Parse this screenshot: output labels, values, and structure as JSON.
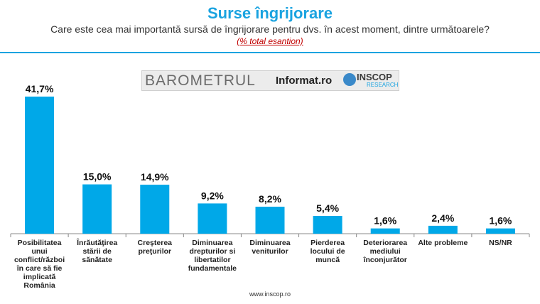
{
  "header": {
    "title": "Surse îngrijorare",
    "subtitle": "Care este cea mai importantă sursă de îngrijorare pentru dvs. în acest moment, dintre următoarele?",
    "note": "(% total esantion)"
  },
  "logo": {
    "barometrul": "BAROMETRUL",
    "informat": "Informat.ro",
    "inscop": "INSCOP",
    "research": "RESEARCH"
  },
  "chart_data": {
    "type": "bar",
    "categories": [
      [
        "Posibilitatea",
        "unui",
        "conflict/război",
        "în care să fie",
        "implicată",
        "România"
      ],
      [
        "Înrăutăţirea",
        "stării de",
        "sănătate"
      ],
      [
        "Creşterea",
        "preţurilor"
      ],
      [
        "Diminuarea",
        "drepturilor si",
        "libertatilor",
        "fundamentale"
      ],
      [
        "Diminuarea",
        "veniturilor"
      ],
      [
        "Pierderea",
        "locului de",
        "muncă"
      ],
      [
        "Deteriorarea",
        "mediului",
        "înconjurător"
      ],
      [
        "Alte probleme"
      ],
      [
        "NS/NR"
      ]
    ],
    "values": [
      41.7,
      15.0,
      14.9,
      9.2,
      8.2,
      5.4,
      1.6,
      2.4,
      1.6
    ],
    "labels": [
      "41,7%",
      "15,0%",
      "14,9%",
      "9,2%",
      "8,2%",
      "5,4%",
      "1,6%",
      "2,4%",
      "1,6%"
    ],
    "title": "",
    "xlabel": "",
    "ylabel": "",
    "ylim": [
      0,
      45
    ],
    "grid": false,
    "bar_color": "#00a8e8"
  },
  "footer": {
    "url": "www.inscop.ro"
  }
}
